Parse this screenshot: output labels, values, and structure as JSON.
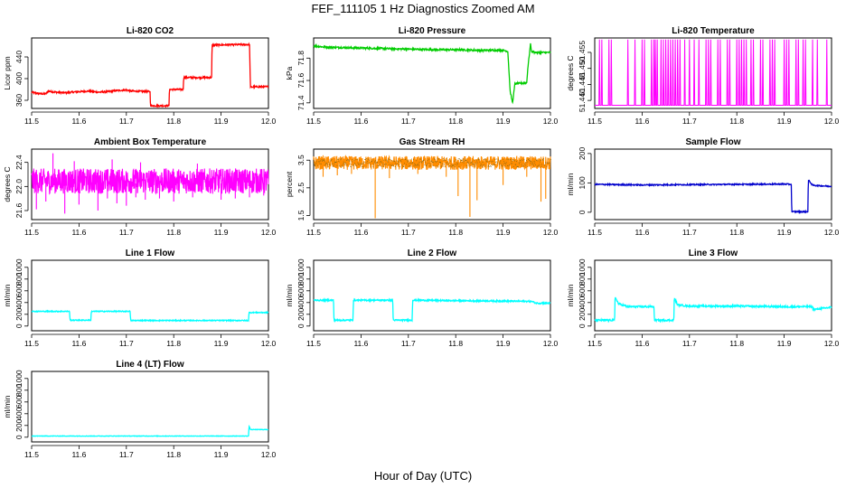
{
  "figure": {
    "title": "FEF_111105  1 Hz Diagnostics Zoomed AM",
    "xlabel": "Hour of Day (UTC)"
  },
  "chart_data": [
    {
      "type": "line",
      "title": "Li-820 CO2",
      "ylabel": "Licor ppm",
      "color": "#ff0000",
      "xlim": [
        11.5,
        12.0
      ],
      "ylim": [
        345,
        475
      ],
      "xticks": [
        "11.5",
        "11.6",
        "11.7",
        "11.8",
        "11.9",
        "12.0"
      ],
      "yticks": [
        "360",
        "400",
        "440"
      ],
      "noise": 1.5,
      "x": [
        11.5,
        11.51,
        11.52,
        11.53,
        11.535,
        11.55,
        11.57,
        11.6,
        11.62,
        11.64,
        11.66,
        11.68,
        11.7,
        11.71,
        11.75,
        11.751,
        11.79,
        11.791,
        11.82,
        11.821,
        11.88,
        11.881,
        11.96,
        11.962,
        11.97,
        12.0
      ],
      "y": [
        375,
        373,
        372,
        372,
        377,
        375,
        374,
        376,
        377,
        375,
        376,
        378,
        379,
        377,
        376,
        350,
        350,
        380,
        380,
        402,
        402,
        462,
        463,
        384,
        385,
        385
      ]
    },
    {
      "type": "line",
      "title": "Li-820 Pressure",
      "ylabel": "kPa",
      "color": "#00cc00",
      "xlim": [
        11.5,
        12.0
      ],
      "ylim": [
        71.35,
        71.98
      ],
      "xticks": [
        "11.5",
        "11.6",
        "11.7",
        "11.8",
        "11.9",
        "12.0"
      ],
      "yticks": [
        "71.4",
        "71.6",
        "71.8"
      ],
      "noise": 0.008,
      "x": [
        11.5,
        11.52,
        11.55,
        11.6,
        11.65,
        11.7,
        11.75,
        11.8,
        11.85,
        11.9,
        11.91,
        11.915,
        11.92,
        11.925,
        11.95,
        11.952,
        11.958,
        11.96,
        11.97,
        12.0
      ],
      "y": [
        71.91,
        71.9,
        71.895,
        71.89,
        71.885,
        71.88,
        71.875,
        71.875,
        71.87,
        71.87,
        71.86,
        71.5,
        71.4,
        71.57,
        71.58,
        71.7,
        71.93,
        71.86,
        71.85,
        71.85
      ]
    },
    {
      "type": "line",
      "title": "Li-820 Temperature",
      "ylabel": "degrees C",
      "color": "#ff00ff",
      "xlim": [
        11.5,
        12.0
      ],
      "ylim": [
        51.4375,
        51.4595
      ],
      "xticks": [
        "11.5",
        "11.6",
        "11.7",
        "11.8",
        "11.9",
        "12.0"
      ],
      "yticks": [
        "51.440",
        "51.445",
        "51.450",
        "51.455"
      ],
      "base": 51.4385,
      "high": 51.459,
      "spikes_x": [
        11.51,
        11.515,
        11.53,
        11.535,
        11.57,
        11.585,
        11.6,
        11.605,
        11.62,
        11.625,
        11.628,
        11.632,
        11.64,
        11.645,
        11.65,
        11.655,
        11.66,
        11.665,
        11.67,
        11.675,
        11.68,
        11.69,
        11.7,
        11.71,
        11.72,
        11.735,
        11.74,
        11.745,
        11.76,
        11.765,
        11.78,
        11.785,
        11.8,
        11.805,
        11.81,
        11.815,
        11.82,
        11.83,
        11.835,
        11.85,
        11.855,
        11.87,
        11.875,
        11.88,
        11.9,
        11.905,
        11.91,
        11.925,
        11.93,
        11.94,
        11.945,
        11.96,
        11.97,
        11.99
      ]
    },
    {
      "type": "line",
      "title": "Ambient Box Temperature",
      "ylabel": "degrees C",
      "color": "#ff00ff",
      "xlim": [
        11.5,
        12.0
      ],
      "ylim": [
        21.45,
        22.62
      ],
      "xticks": [
        "11.5",
        "11.6",
        "11.7",
        "11.8",
        "11.9",
        "12.0"
      ],
      "yticks": [
        "21.6",
        "22.0",
        "22.4"
      ],
      "mid": 22.05,
      "range": [
        21.88,
        22.3
      ],
      "dips_x": [
        11.51,
        11.53,
        11.57,
        11.6,
        11.64,
        11.66,
        11.68,
        11.7,
        11.72,
        11.74,
        11.77,
        11.8,
        11.84,
        11.9,
        11.93,
        11.96,
        11.99
      ],
      "dips_y": [
        21.62,
        21.75,
        21.55,
        21.7,
        21.6,
        21.8,
        21.72,
        21.68,
        21.82,
        21.78,
        21.8,
        21.75,
        21.82,
        21.78,
        21.8,
        21.82,
        21.85
      ],
      "peaks_x": [
        11.545,
        11.59,
        11.67,
        11.73,
        11.85
      ],
      "peaks_y": [
        22.55,
        22.42,
        22.45,
        22.4,
        22.38
      ]
    },
    {
      "type": "line",
      "title": "Gas Stream RH",
      "ylabel": "percent",
      "color": "#ff8c00",
      "color2": "#8b6914",
      "xlim": [
        11.5,
        12.0
      ],
      "ylim": [
        1.35,
        3.9
      ],
      "xticks": [
        "11.5",
        "11.6",
        "11.7",
        "11.8",
        "11.9",
        "12.0"
      ],
      "yticks": [
        "1.5",
        "2.5",
        "3.5"
      ],
      "mid": 3.38,
      "range": [
        3.15,
        3.65
      ],
      "dips_x": [
        11.52,
        11.55,
        11.58,
        11.63,
        11.66,
        11.72,
        11.78,
        11.805,
        11.83,
        11.845,
        11.9,
        11.95,
        11.98,
        11.99
      ],
      "dips_y": [
        2.9,
        2.95,
        3.0,
        1.4,
        2.85,
        3.0,
        2.9,
        2.2,
        1.45,
        2.05,
        2.6,
        2.9,
        2.0,
        2.1
      ]
    },
    {
      "type": "line",
      "title": "Sample Flow",
      "ylabel": "ml/min",
      "color": "#0000cc",
      "xlim": [
        11.5,
        12.0
      ],
      "ylim": [
        -25,
        215
      ],
      "xticks": [
        "11.5",
        "11.6",
        "11.7",
        "11.8",
        "11.9",
        "12.0"
      ],
      "yticks": [
        "0",
        "100",
        "200"
      ],
      "noise": 2,
      "x": [
        11.5,
        11.6,
        11.7,
        11.8,
        11.9,
        11.915,
        11.916,
        11.95,
        11.951,
        11.96,
        12.0
      ],
      "y": [
        95,
        93,
        94,
        95,
        96,
        95,
        2,
        2,
        110,
        92,
        88
      ]
    },
    {
      "type": "line",
      "title": "Line 1 Flow",
      "ylabel": "ml/min",
      "color": "#00ffff",
      "xlim": [
        11.5,
        12.0
      ],
      "ylim": [
        -80,
        1120
      ],
      "xticks": [
        "11.5",
        "11.6",
        "11.7",
        "11.8",
        "11.9",
        "12.0"
      ],
      "yticks": [
        "0",
        "200",
        "400",
        "600",
        "800",
        "1000"
      ],
      "noise": 8,
      "x": [
        11.5,
        11.58,
        11.581,
        11.625,
        11.626,
        11.708,
        11.709,
        11.958,
        11.959,
        12.0
      ],
      "y": [
        250,
        250,
        100,
        100,
        250,
        250,
        95,
        95,
        230,
        230
      ]
    },
    {
      "type": "line",
      "title": "Line 2 Flow",
      "ylabel": "ml/min",
      "color": "#00ffff",
      "xlim": [
        11.5,
        12.0
      ],
      "ylim": [
        -80,
        1120
      ],
      "xticks": [
        "11.5",
        "11.6",
        "11.7",
        "11.8",
        "11.9",
        "12.0"
      ],
      "yticks": [
        "0",
        "200",
        "400",
        "600",
        "800",
        "1000"
      ],
      "noise": 12,
      "x": [
        11.5,
        11.542,
        11.543,
        11.583,
        11.584,
        11.667,
        11.668,
        11.708,
        11.709,
        11.96,
        11.97,
        12.0
      ],
      "y": [
        440,
        440,
        100,
        100,
        440,
        440,
        100,
        100,
        440,
        420,
        390,
        390
      ]
    },
    {
      "type": "line",
      "title": "Line 3 Flow",
      "ylabel": "ml/min",
      "color": "#00ffff",
      "xlim": [
        11.5,
        12.0
      ],
      "ylim": [
        -80,
        1120
      ],
      "xticks": [
        "11.5",
        "11.6",
        "11.7",
        "11.8",
        "11.9",
        "12.0"
      ],
      "yticks": [
        "0",
        "200",
        "400",
        "600",
        "800",
        "1000"
      ],
      "noise": 15,
      "x": [
        11.5,
        11.542,
        11.543,
        11.55,
        11.57,
        11.625,
        11.626,
        11.667,
        11.668,
        11.675,
        11.7,
        11.8,
        11.9,
        11.96,
        11.961,
        12.0
      ],
      "y": [
        100,
        100,
        500,
        380,
        330,
        330,
        100,
        100,
        480,
        360,
        340,
        340,
        330,
        330,
        280,
        320
      ]
    },
    {
      "type": "line",
      "title": "Line 4 (LT) Flow",
      "ylabel": "ml/min",
      "color": "#00ffff",
      "xlim": [
        11.5,
        12.0
      ],
      "ylim": [
        -80,
        1120
      ],
      "xticks": [
        "11.5",
        "11.6",
        "11.7",
        "11.8",
        "11.9",
        "12.0"
      ],
      "yticks": [
        "0",
        "200",
        "400",
        "600",
        "800",
        "1000"
      ],
      "noise": 4,
      "x": [
        11.5,
        11.958,
        11.959,
        11.962,
        11.97,
        12.0
      ],
      "y": [
        20,
        20,
        190,
        130,
        130,
        130
      ]
    }
  ]
}
